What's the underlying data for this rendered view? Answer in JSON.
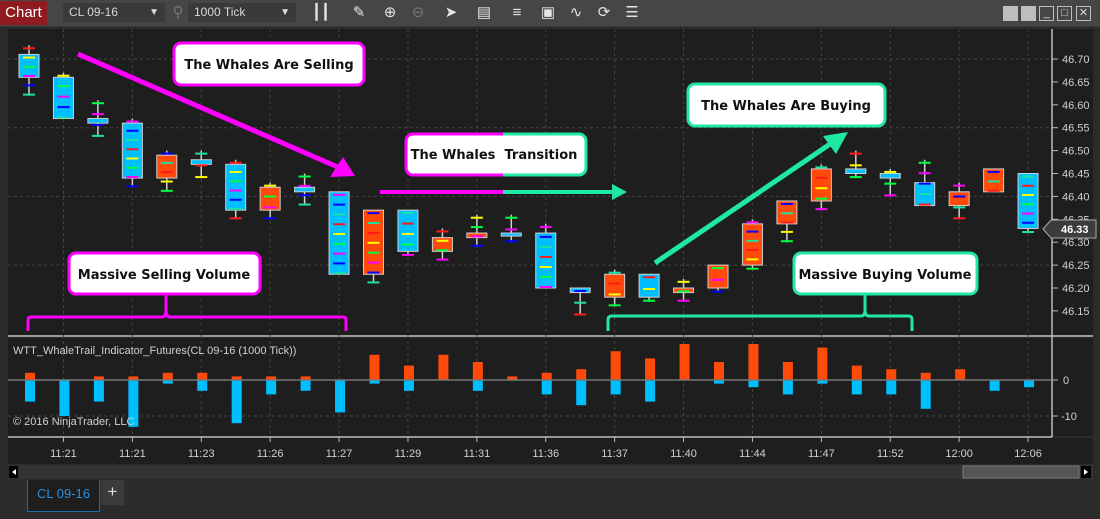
{
  "toolbar": {
    "chart_label": "Chart",
    "instrument": "CL 09-16",
    "interval": "1000 Tick",
    "icons": [
      "search-icon",
      "chart-style-icon",
      "pencil-icon",
      "zoom-in-icon",
      "zoom-out-icon",
      "pointer-icon",
      "data-box-icon",
      "bar-spacing-icon",
      "templates-icon",
      "strategies-icon",
      "reload-icon",
      "properties-list-icon"
    ],
    "window_controls": [
      "tile-icon",
      "tile-icon",
      "minimize-icon",
      "maximize-icon",
      "close-icon"
    ]
  },
  "colors": {
    "up": "#ff4a0a",
    "down": "#00bfff",
    "selling": "#ff00ff",
    "buying": "#1fe8a0",
    "background": "#1e1e1e"
  },
  "annotations": {
    "selling": "The Whales Are Selling",
    "transition": "The Whales  Transition",
    "buying": "The Whales Are Buying",
    "selling_volume": "Massive Selling Volume",
    "buying_volume": "Massive Buying Volume"
  },
  "indicator": {
    "label": "WTT_WhaleTrail_Indicator_Futures(CL 09-16 (1000 Tick))",
    "copyright": "© 2016 NinjaTrader, LLC"
  },
  "tabs": [
    {
      "label": "CL 09-16"
    }
  ],
  "add_tab_label": "+",
  "chart_data": [
    {
      "type": "candlestick",
      "instrument": "CL 09-16",
      "interval": "1000 Tick",
      "ylim": [
        46.11,
        46.76
      ],
      "y_ticks": [
        "46.70",
        "46.65",
        "46.60",
        "46.55",
        "46.50",
        "46.45",
        "46.40",
        "46.35",
        "46.30",
        "46.25",
        "46.20",
        "46.15"
      ],
      "x_tick_labels": [
        "11:21",
        "11:21",
        "11:23",
        "11:26",
        "11:27",
        "11:29",
        "11:31",
        "11:36",
        "11:37",
        "11:40",
        "11:44",
        "11:47",
        "11:52",
        "12:00",
        "12:06"
      ],
      "last_price": "46.33",
      "grid": true,
      "candles": [
        {
          "o": 46.71,
          "h": 46.73,
          "l": 46.62,
          "c": 46.66
        },
        {
          "o": 46.66,
          "h": 46.67,
          "l": 46.57,
          "c": 46.57
        },
        {
          "o": 46.57,
          "h": 46.61,
          "l": 46.53,
          "c": 46.56
        },
        {
          "o": 46.56,
          "h": 46.57,
          "l": 46.42,
          "c": 46.44
        },
        {
          "o": 46.44,
          "h": 46.5,
          "l": 46.41,
          "c": 46.49
        },
        {
          "o": 46.48,
          "h": 46.5,
          "l": 46.44,
          "c": 46.47
        },
        {
          "o": 46.47,
          "h": 46.48,
          "l": 46.35,
          "c": 46.37
        },
        {
          "o": 46.37,
          "h": 46.43,
          "l": 46.35,
          "c": 46.42
        },
        {
          "o": 46.42,
          "h": 46.45,
          "l": 46.38,
          "c": 46.41
        },
        {
          "o": 46.41,
          "h": 46.41,
          "l": 46.23,
          "c": 46.23
        },
        {
          "o": 46.23,
          "h": 46.37,
          "l": 46.21,
          "c": 46.37
        },
        {
          "o": 46.37,
          "h": 46.37,
          "l": 46.27,
          "c": 46.28
        },
        {
          "o": 46.28,
          "h": 46.33,
          "l": 46.26,
          "c": 46.31
        },
        {
          "o": 46.31,
          "h": 46.36,
          "l": 46.29,
          "c": 46.32
        },
        {
          "o": 46.32,
          "h": 46.36,
          "l": 46.3,
          "c": 46.32
        },
        {
          "o": 46.32,
          "h": 46.34,
          "l": 46.2,
          "c": 46.2
        },
        {
          "o": 46.2,
          "h": 46.2,
          "l": 46.14,
          "c": 46.19
        },
        {
          "o": 46.18,
          "h": 46.24,
          "l": 46.16,
          "c": 46.23
        },
        {
          "o": 46.23,
          "h": 46.23,
          "l": 46.17,
          "c": 46.18
        },
        {
          "o": 46.19,
          "h": 46.22,
          "l": 46.17,
          "c": 46.2
        },
        {
          "o": 46.2,
          "h": 46.25,
          "l": 46.19,
          "c": 46.25
        },
        {
          "o": 46.25,
          "h": 46.35,
          "l": 46.24,
          "c": 46.34
        },
        {
          "o": 46.34,
          "h": 46.39,
          "l": 46.3,
          "c": 46.39
        },
        {
          "o": 46.39,
          "h": 46.47,
          "l": 46.37,
          "c": 46.46
        },
        {
          "o": 46.46,
          "h": 46.5,
          "l": 46.44,
          "c": 46.45
        },
        {
          "o": 46.45,
          "h": 46.46,
          "l": 46.4,
          "c": 46.44
        },
        {
          "o": 46.43,
          "h": 46.48,
          "l": 46.38,
          "c": 46.38
        },
        {
          "o": 46.38,
          "h": 46.43,
          "l": 46.35,
          "c": 46.41
        },
        {
          "o": 46.41,
          "h": 46.46,
          "l": 46.41,
          "c": 46.46
        },
        {
          "o": 46.45,
          "h": 46.45,
          "l": 46.32,
          "c": 46.33
        }
      ]
    },
    {
      "type": "bar",
      "title": "WTT_WhaleTrail_Indicator_Futures(CL 09-16 (1000 Tick))",
      "ylim": [
        -15,
        12
      ],
      "y_ticks": [
        "0",
        "-10"
      ],
      "grid": true,
      "series": [
        {
          "values": [
            2,
            0,
            1,
            1,
            2,
            2,
            1,
            1,
            1,
            0,
            7,
            4,
            7,
            5,
            1,
            2,
            3,
            8,
            6,
            10,
            5,
            10,
            5,
            9,
            4,
            3,
            2,
            3,
            0,
            0
          ]
        },
        {
          "values": [
            -6,
            -10,
            -6,
            -13,
            -1,
            -3,
            -12,
            -4,
            -3,
            -9,
            -1,
            -3,
            0,
            -3,
            0,
            -4,
            -7,
            -4,
            -6,
            0,
            -1,
            -2,
            -4,
            -1,
            -4,
            -4,
            -8,
            0,
            -3,
            -2
          ]
        }
      ]
    }
  ]
}
